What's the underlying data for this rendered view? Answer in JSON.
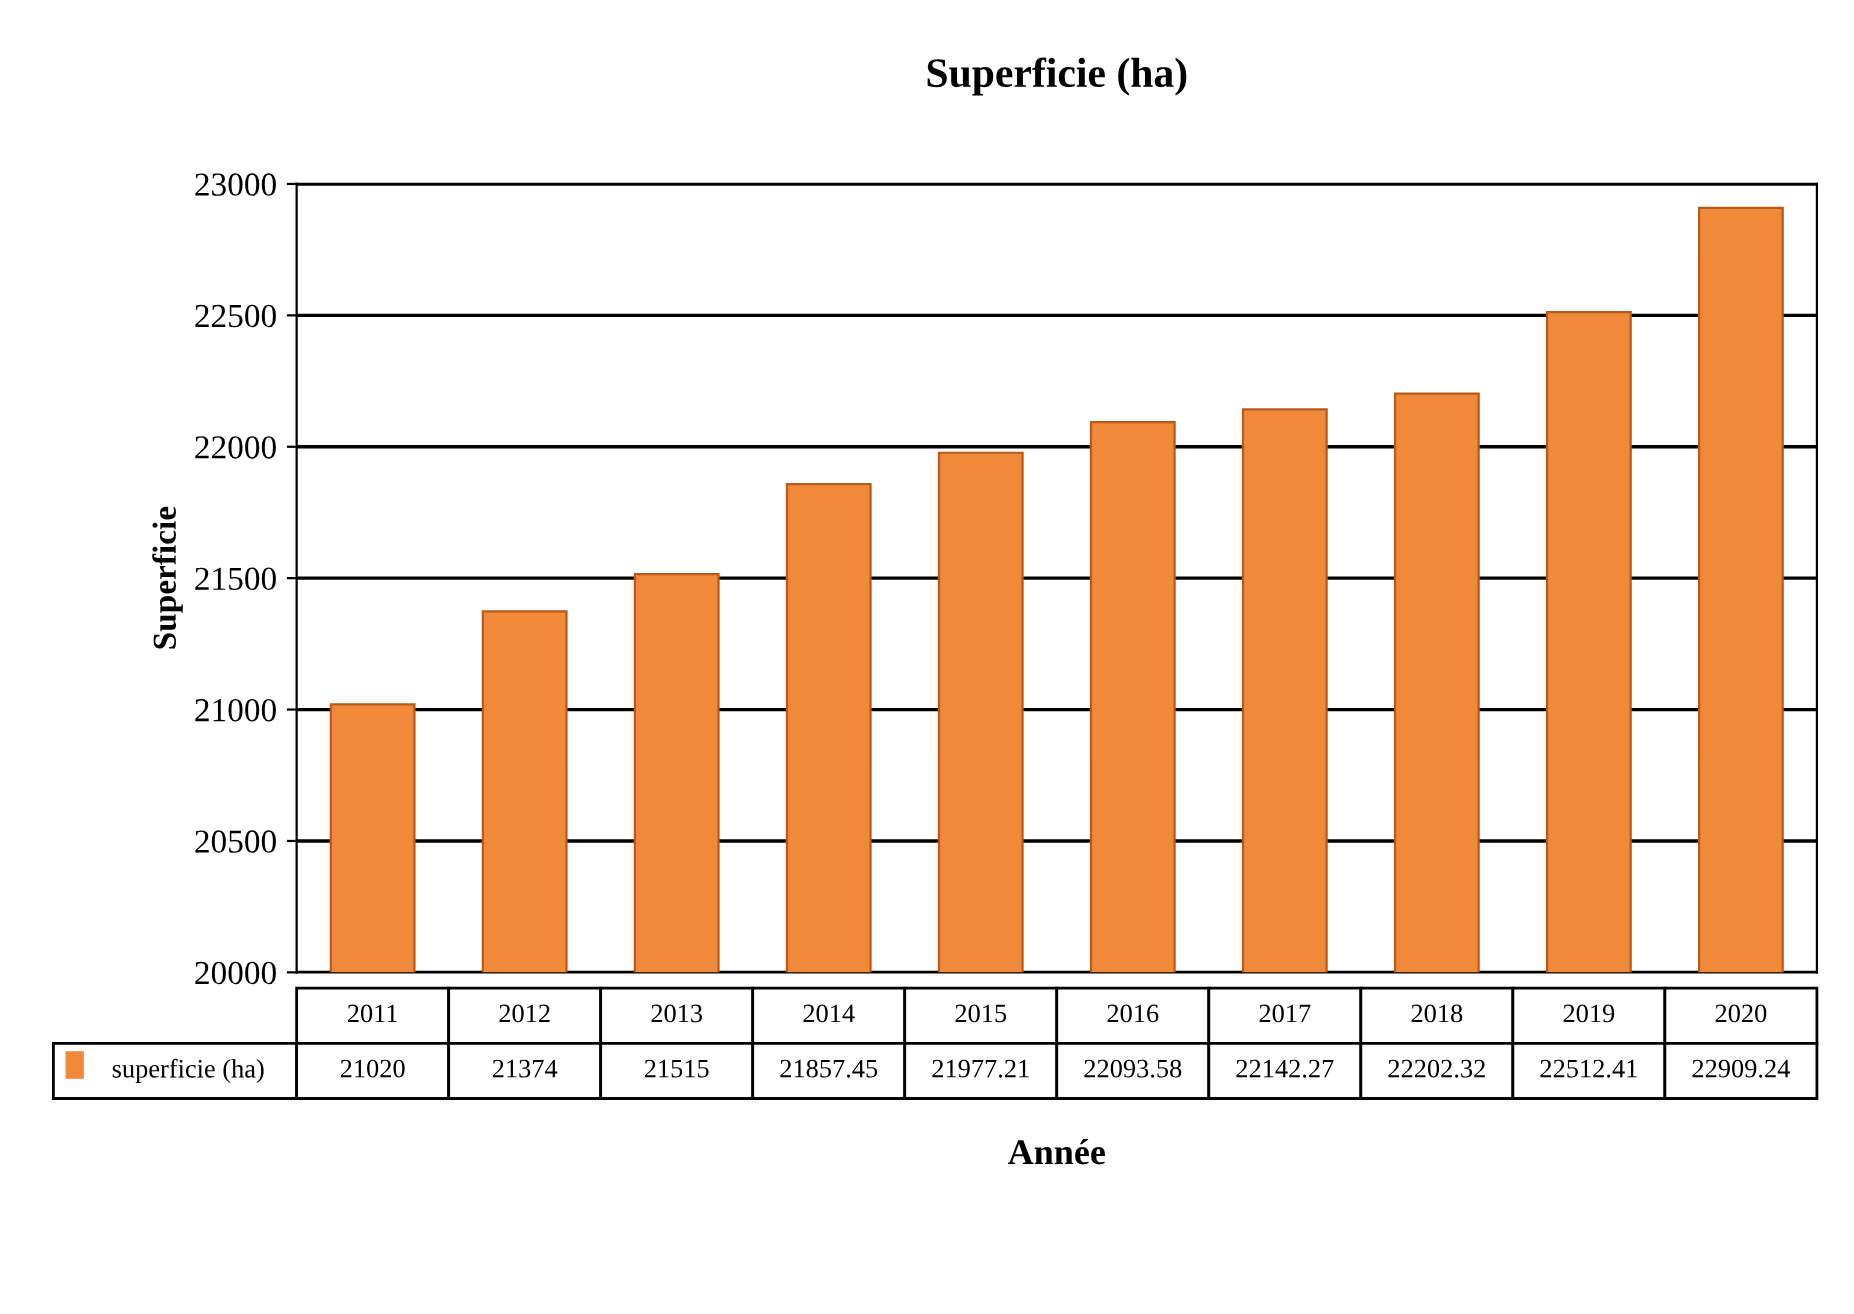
{
  "chart_data": {
    "type": "bar",
    "title": "Superficie (ha)",
    "xlabel": "Année",
    "ylabel": "Superficie",
    "categories": [
      "2011",
      "2012",
      "2013",
      "2014",
      "2015",
      "2016",
      "2017",
      "2018",
      "2019",
      "2020"
    ],
    "series": [
      {
        "name": "superficie (ha)",
        "color": "#f08a3a",
        "values": [
          21020,
          21374,
          21515,
          21857.45,
          21977.21,
          22093.58,
          22142.27,
          22202.32,
          22512.41,
          22909.24
        ]
      }
    ],
    "ylim": [
      20000,
      23000
    ],
    "yticks": [
      20000,
      20500,
      21000,
      21500,
      22000,
      22500,
      23000
    ],
    "grid": "y",
    "data_labels": true
  }
}
